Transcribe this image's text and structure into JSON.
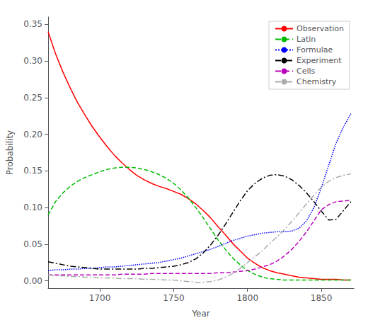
{
  "chart_data": {
    "type": "line",
    "xlabel": "Year",
    "ylabel": "Probability",
    "xlim": [
      1665,
      1872
    ],
    "ylim": [
      -0.01,
      0.36
    ],
    "xticks": [
      1700,
      1750,
      1800,
      1850
    ],
    "yticks": [
      {
        "value": 0.0,
        "label": "0.00"
      },
      0.05,
      {
        "value": 0.1,
        "label": "0.10"
      },
      0.15,
      {
        "value": 0.2,
        "label": "0.20"
      },
      0.25,
      {
        "value": 0.3,
        "label": "0.30"
      },
      0.35
    ],
    "grid": false,
    "legend": "upper right",
    "x": [
      1665,
      1670,
      1675,
      1680,
      1685,
      1690,
      1695,
      1700,
      1705,
      1710,
      1715,
      1720,
      1725,
      1730,
      1735,
      1740,
      1745,
      1750,
      1755,
      1760,
      1765,
      1770,
      1775,
      1780,
      1785,
      1790,
      1795,
      1800,
      1805,
      1810,
      1815,
      1820,
      1825,
      1830,
      1835,
      1840,
      1845,
      1850,
      1855,
      1860,
      1865,
      1870
    ],
    "series": [
      {
        "name": "Observation",
        "color": "#FF0000",
        "line_style": "solid",
        "values": [
          0.34,
          0.31,
          0.285,
          0.263,
          0.243,
          0.226,
          0.21,
          0.196,
          0.183,
          0.171,
          0.161,
          0.152,
          0.144,
          0.138,
          0.133,
          0.129,
          0.126,
          0.122,
          0.118,
          0.112,
          0.105,
          0.096,
          0.086,
          0.074,
          0.063,
          0.051,
          0.041,
          0.031,
          0.024,
          0.018,
          0.014,
          0.011,
          0.009,
          0.007,
          0.005,
          0.004,
          0.003,
          0.002,
          0.002,
          0.002,
          0.001,
          0.001
        ]
      },
      {
        "name": "Latin",
        "color": "#00BB00",
        "line_style": "dashed",
        "values": [
          0.09,
          0.108,
          0.12,
          0.129,
          0.136,
          0.141,
          0.145,
          0.149,
          0.152,
          0.154,
          0.155,
          0.155,
          0.154,
          0.152,
          0.149,
          0.145,
          0.14,
          0.133,
          0.124,
          0.113,
          0.1,
          0.086,
          0.071,
          0.056,
          0.043,
          0.031,
          0.022,
          0.014,
          0.009,
          0.005,
          0.003,
          0.002,
          0.001,
          0.001,
          0.001,
          0.001,
          0.001,
          0.001,
          0.001,
          0.001,
          0.001,
          0.001
        ]
      },
      {
        "name": "Formulae",
        "color": "#0000FF",
        "line_style": "dotted",
        "values": [
          0.014,
          0.015,
          0.015,
          0.016,
          0.016,
          0.017,
          0.017,
          0.018,
          0.019,
          0.019,
          0.02,
          0.021,
          0.022,
          0.023,
          0.024,
          0.025,
          0.027,
          0.029,
          0.031,
          0.034,
          0.037,
          0.04,
          0.043,
          0.047,
          0.051,
          0.055,
          0.058,
          0.061,
          0.063,
          0.065,
          0.066,
          0.067,
          0.067,
          0.068,
          0.072,
          0.082,
          0.1,
          0.127,
          0.158,
          0.188,
          0.21,
          0.228
        ]
      },
      {
        "name": "Experiment",
        "color": "#000000",
        "line_style": "dashdot",
        "values": [
          0.026,
          0.024,
          0.022,
          0.02,
          0.019,
          0.018,
          0.017,
          0.016,
          0.016,
          0.016,
          0.016,
          0.016,
          0.016,
          0.017,
          0.017,
          0.018,
          0.019,
          0.02,
          0.022,
          0.025,
          0.03,
          0.038,
          0.049,
          0.062,
          0.077,
          0.093,
          0.109,
          0.123,
          0.133,
          0.14,
          0.144,
          0.145,
          0.143,
          0.138,
          0.13,
          0.12,
          0.108,
          0.095,
          0.083,
          0.084,
          0.096,
          0.108
        ]
      },
      {
        "name": "Cells",
        "color": "#BB00BB",
        "line_style": "dashed",
        "values": [
          0.008,
          0.008,
          0.008,
          0.008,
          0.008,
          0.008,
          0.008,
          0.008,
          0.008,
          0.008,
          0.009,
          0.009,
          0.009,
          0.009,
          0.01,
          0.01,
          0.01,
          0.01,
          0.01,
          0.01,
          0.01,
          0.01,
          0.01,
          0.011,
          0.011,
          0.012,
          0.013,
          0.014,
          0.016,
          0.019,
          0.022,
          0.027,
          0.034,
          0.043,
          0.054,
          0.067,
          0.082,
          0.097,
          0.104,
          0.108,
          0.109,
          0.11
        ]
      },
      {
        "name": "Chemistry",
        "color": "#AAAAAA",
        "line_style": "dashdot",
        "values": [
          0.008,
          0.007,
          0.007,
          0.006,
          0.006,
          0.005,
          0.005,
          0.004,
          0.004,
          0.004,
          0.003,
          0.003,
          0.003,
          0.002,
          0.002,
          0.002,
          0.001,
          0.001,
          0.0,
          -0.001,
          -0.002,
          -0.002,
          -0.001,
          0.001,
          0.005,
          0.01,
          0.017,
          0.025,
          0.033,
          0.041,
          0.051,
          0.06,
          0.07,
          0.081,
          0.093,
          0.105,
          0.117,
          0.128,
          0.136,
          0.141,
          0.144,
          0.146
        ]
      }
    ]
  }
}
